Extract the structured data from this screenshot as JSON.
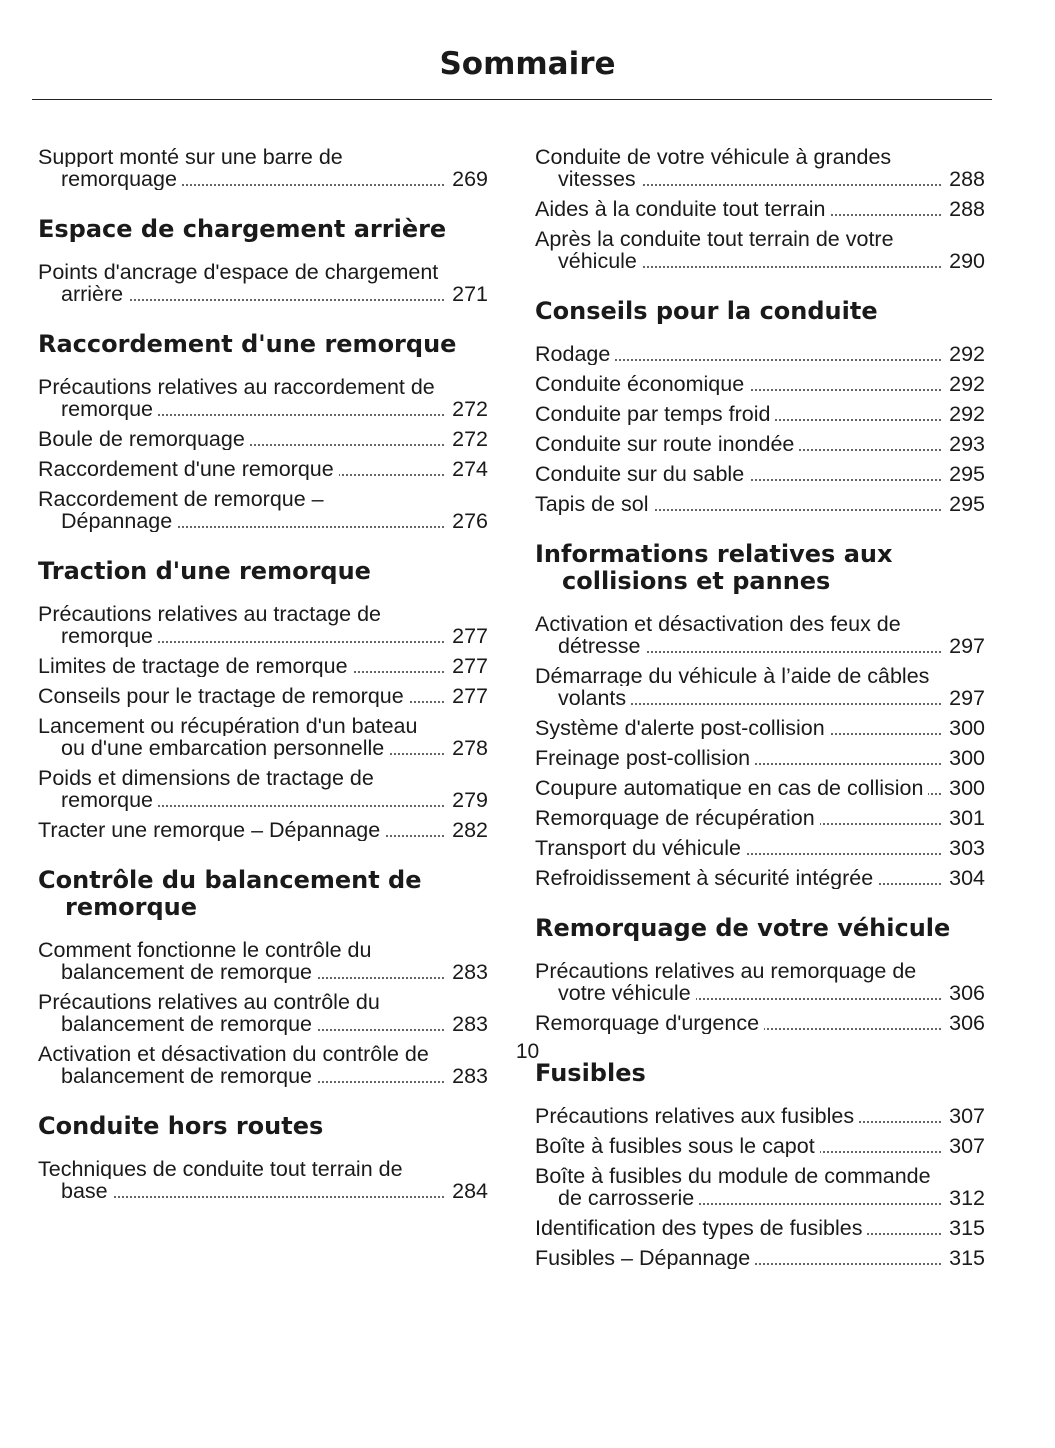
{
  "header": {
    "title": "Sommaire"
  },
  "columns": [
    {
      "items": [
        {
          "title": "Support monté sur une barre de remorquage",
          "page": 269
        },
        {
          "heading": "Espace de chargement arrière"
        },
        {
          "title": "Points d'ancrage d'espace de chargement arrière",
          "page": 271
        },
        {
          "heading": "Raccordement d'une remorque"
        },
        {
          "title": "Précautions relatives au raccordement de remorque",
          "page": 272
        },
        {
          "title": "Boule de remorquage",
          "page": 272
        },
        {
          "title": "Raccordement d'une remorque",
          "page": 274
        },
        {
          "title": "Raccordement de remorque – Dépannage",
          "page": 276
        },
        {
          "heading": "Traction d'une remorque"
        },
        {
          "title": "Précautions relatives au tractage de remorque",
          "page": 277
        },
        {
          "title": "Limites de tractage de remorque",
          "page": 277
        },
        {
          "title": "Conseils pour le tractage de remorque",
          "page": 277
        },
        {
          "title": "Lancement ou récupération d'un bateau ou d'une embarcation personnelle",
          "page": 278
        },
        {
          "title": "Poids et dimensions de tractage de remorque",
          "page": 279
        },
        {
          "title": "Tracter une remorque – Dépannage",
          "page": 282
        },
        {
          "heading": "Contrôle du balancement de remorque"
        },
        {
          "title": "Comment fonctionne le contrôle du balancement de remorque",
          "page": 283
        },
        {
          "title": "Précautions relatives au contrôle du balancement de remorque",
          "page": 283
        },
        {
          "title": "Activation et désactivation du contrôle de balancement de remorque",
          "page": 283
        },
        {
          "heading": "Conduite hors routes"
        },
        {
          "title": "Techniques de conduite tout terrain de base",
          "page": 284
        }
      ]
    },
    {
      "items": [
        {
          "title": "Conduite de votre véhicule à grandes vitesses",
          "page": 288
        },
        {
          "title": "Aides à la conduite tout terrain",
          "page": 288
        },
        {
          "title": "Après la conduite tout terrain de votre véhicule",
          "page": 290
        },
        {
          "heading": "Conseils pour la conduite"
        },
        {
          "title": "Rodage",
          "page": 292
        },
        {
          "title": "Conduite économique",
          "page": 292
        },
        {
          "title": "Conduite par temps froid",
          "page": 292
        },
        {
          "title": "Conduite sur route inondée",
          "page": 293
        },
        {
          "title": "Conduite sur du sable",
          "page": 295
        },
        {
          "title": "Tapis de sol",
          "page": 295
        },
        {
          "heading": "Informations relatives aux collisions et pannes"
        },
        {
          "title": "Activation et désactivation des feux de détresse",
          "page": 297
        },
        {
          "title": "Démarrage du véhicule à l’aide de câbles volants",
          "page": 297
        },
        {
          "title": "Système d'alerte post-collision",
          "page": 300
        },
        {
          "title": "Freinage post-collision",
          "page": 300
        },
        {
          "title": "Coupure automatique en cas de collision",
          "page": 300
        },
        {
          "title": "Remorquage de récupération",
          "page": 301
        },
        {
          "title": "Transport du véhicule",
          "page": 303
        },
        {
          "title": "Refroidissement à sécurité intégrée",
          "page": 304
        },
        {
          "heading": "Remorquage de votre véhicule"
        },
        {
          "title": "Précautions relatives au remorquage de votre véhicule",
          "page": 306
        },
        {
          "title": "Remorquage d'urgence",
          "page": 306
        },
        {
          "heading": "Fusibles"
        },
        {
          "title": "Précautions relatives aux fusibles",
          "page": 307
        },
        {
          "title": "Boîte à fusibles sous le capot",
          "page": 307
        },
        {
          "title": "Boîte à fusibles du module de commande de carrosserie",
          "page": 312
        },
        {
          "title": "Identification des types de fusibles",
          "page": 315
        },
        {
          "title": "Fusibles – Dépannage",
          "page": 315
        }
      ]
    }
  ],
  "footer": {
    "page_number": 10
  }
}
